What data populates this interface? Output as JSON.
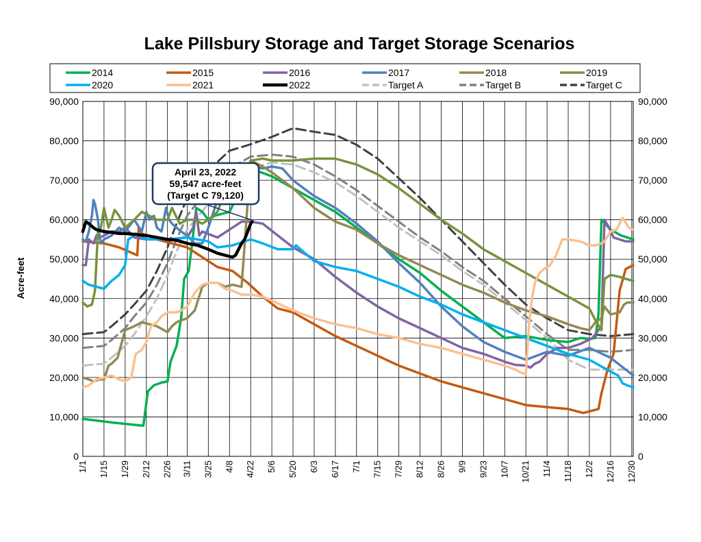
{
  "chart_data": {
    "type": "line",
    "title": "Lake Pillsbury Storage and Target Storage Scenarios",
    "ylabel": "Acre-feet",
    "ylim": [
      0,
      90000
    ],
    "ytick_values": [
      0,
      10000,
      20000,
      30000,
      40000,
      50000,
      60000,
      70000,
      80000,
      90000
    ],
    "ytick_labels": [
      "0",
      "10,000",
      "20,000",
      "30,000",
      "40,000",
      "50,000",
      "60,000",
      "70,000",
      "80,000",
      "90,000"
    ],
    "xlim": [
      1,
      365
    ],
    "x_unit": "day of year",
    "xtick_labels": [
      "1/1",
      "1/15",
      "1/29",
      "2/12",
      "2/26",
      "3/11",
      "3/25",
      "4/8",
      "4/22",
      "5/6",
      "5/20",
      "6/3",
      "6/17",
      "7/1",
      "7/15",
      "7/29",
      "8/12",
      "8/26",
      "9/9",
      "9/23",
      "10/7",
      "10/21",
      "11/4",
      "11/18",
      "12/2",
      "12/16",
      "12/30"
    ],
    "xtick_days": [
      1,
      15,
      29,
      43,
      57,
      70,
      84,
      98,
      112,
      126,
      140,
      154,
      168,
      182,
      196,
      210,
      224,
      238,
      252,
      266,
      280,
      294,
      308,
      322,
      336,
      350,
      364
    ],
    "grid": true,
    "legend_placement": "top",
    "series": [
      {
        "name": "2014",
        "color": "#00b050",
        "dash": "solid",
        "width": 3.5,
        "x": [
          1,
          20,
          40,
          41,
          44,
          48,
          53,
          57,
          59,
          63,
          66,
          68,
          71,
          73,
          76,
          80,
          84,
          88,
          98,
          112,
          126,
          140,
          154,
          168,
          182,
          196,
          210,
          224,
          238,
          252,
          266,
          280,
          294,
          308,
          322,
          330,
          336,
          340,
          342,
          344,
          350,
          357,
          365
        ],
        "y": [
          9500,
          8600,
          7800,
          7800,
          16500,
          18000,
          18700,
          19000,
          24000,
          28000,
          35000,
          45000,
          47000,
          53000,
          63000,
          62000,
          60000,
          61000,
          62000,
          73000,
          71000,
          68000,
          65000,
          62000,
          58000,
          54000,
          50000,
          46500,
          42000,
          38000,
          34000,
          30000,
          30500,
          29500,
          29000,
          30000,
          29800,
          30000,
          36000,
          60000,
          57500,
          56000,
          55000
        ]
      },
      {
        "name": "2015",
        "color": "#c55a11",
        "dash": "solid",
        "width": 3.5,
        "x": [
          1,
          15,
          25,
          37,
          38,
          40,
          50,
          60,
          70,
          80,
          90,
          100,
          110,
          120,
          130,
          140,
          154,
          168,
          182,
          196,
          210,
          224,
          238,
          252,
          266,
          280,
          294,
          308,
          322,
          332,
          337,
          342,
          344,
          348,
          352,
          356,
          360,
          365
        ],
        "y": [
          54500,
          54000,
          53000,
          51000,
          58000,
          56500,
          55000,
          54000,
          53000,
          50500,
          48000,
          47000,
          44000,
          40500,
          37500,
          36500,
          33500,
          30500,
          28000,
          25500,
          23000,
          21000,
          19000,
          17500,
          16000,
          14500,
          13000,
          12500,
          12000,
          11000,
          11500,
          12000,
          16000,
          22000,
          26000,
          42000,
          47500,
          48500
        ]
      },
      {
        "name": "2016",
        "color": "#8064a2",
        "dash": "solid",
        "width": 3.5,
        "x": [
          1,
          3,
          5,
          8,
          10,
          12,
          15,
          20,
          25,
          29,
          35,
          43,
          57,
          70,
          74,
          76,
          78,
          80,
          90,
          100,
          106,
          112,
          120,
          130,
          140,
          154,
          168,
          182,
          196,
          210,
          224,
          238,
          252,
          266,
          280,
          287,
          294,
          297,
          300,
          303,
          308,
          315,
          322,
          330,
          338,
          344,
          346,
          349,
          352,
          356,
          360,
          365
        ],
        "y": [
          48500,
          48500,
          55000,
          54000,
          56000,
          55500,
          56000,
          57000,
          57000,
          58000,
          55500,
          55000,
          55000,
          55500,
          58000,
          62000,
          56000,
          57000,
          55500,
          58000,
          59500,
          59500,
          59000,
          56000,
          53000,
          50000,
          45500,
          41500,
          38000,
          35000,
          32500,
          30000,
          27500,
          26000,
          24000,
          23200,
          23000,
          22500,
          23500,
          24000,
          26000,
          27500,
          27500,
          28500,
          30000,
          33000,
          60000,
          58000,
          55500,
          55000,
          54500,
          54500
        ]
      },
      {
        "name": "2017",
        "color": "#4f81bd",
        "dash": "solid",
        "width": 3.5,
        "x": [
          1,
          3,
          5,
          7,
          8,
          9,
          10,
          11,
          12,
          13,
          15,
          20,
          25,
          29,
          35,
          40,
          43,
          45,
          48,
          50,
          53,
          56,
          58,
          60,
          63,
          66,
          70,
          75,
          80,
          84,
          90,
          95,
          100,
          106,
          112,
          120,
          126,
          133,
          140,
          154,
          168,
          182,
          196,
          210,
          224,
          238,
          252,
          266,
          280,
          294,
          308,
          322,
          336,
          350,
          365
        ],
        "y": [
          55000,
          54500,
          57000,
          61000,
          65000,
          64000,
          62000,
          60000,
          56000,
          54000,
          55000,
          56000,
          58000,
          57000,
          60000,
          57000,
          62000,
          60000,
          61000,
          58000,
          57000,
          63000,
          60000,
          59000,
          58000,
          57000,
          56000,
          54000,
          54000,
          58000,
          65000,
          70000,
          72000,
          74000,
          73500,
          73000,
          73500,
          73000,
          70000,
          66000,
          63000,
          59000,
          54500,
          49000,
          44000,
          38000,
          33000,
          29000,
          26500,
          24500,
          26500,
          25500,
          27500,
          25000,
          20500
        ]
      },
      {
        "name": "2018",
        "color": "#938953",
        "dash": "solid",
        "width": 3.5,
        "x": [
          1,
          5,
          8,
          12,
          15,
          18,
          20,
          24,
          29,
          35,
          40,
          45,
          50,
          57,
          60,
          63,
          66,
          70,
          75,
          80,
          84,
          90,
          95,
          100,
          106,
          112,
          120,
          126,
          140,
          154,
          168,
          182,
          196,
          210,
          224,
          238,
          252,
          266,
          280,
          294,
          308,
          322,
          330,
          336,
          340,
          344,
          346,
          350,
          356,
          359,
          361,
          365
        ],
        "y": [
          20000,
          19500,
          19000,
          19500,
          19500,
          23000,
          23500,
          25000,
          32000,
          33000,
          34000,
          33500,
          33000,
          31500,
          33000,
          34000,
          34500,
          35000,
          37000,
          43000,
          44000,
          44000,
          43000,
          43500,
          43000,
          75000,
          73500,
          72000,
          68000,
          63000,
          59500,
          57500,
          54000,
          51000,
          48500,
          46000,
          43500,
          41500,
          39000,
          37000,
          35500,
          33500,
          32500,
          32000,
          34000,
          35000,
          38000,
          36000,
          36500,
          38500,
          39000,
          39000
        ]
      },
      {
        "name": "2019",
        "color": "#77933c",
        "dash": "solid",
        "width": 3.5,
        "x": [
          1,
          4,
          7,
          9,
          11,
          13,
          15,
          18,
          20,
          22,
          25,
          29,
          35,
          40,
          45,
          50,
          57,
          60,
          65,
          70,
          75,
          80,
          84,
          90,
          96,
          100,
          106,
          110,
          112,
          120,
          126,
          140,
          154,
          168,
          182,
          196,
          210,
          224,
          238,
          252,
          266,
          280,
          294,
          308,
          322,
          336,
          340,
          344,
          346,
          350,
          356,
          360,
          365
        ],
        "y": [
          39000,
          38000,
          38500,
          42000,
          57000,
          58000,
          63000,
          58000,
          60000,
          62500,
          61000,
          58000,
          60000,
          62000,
          61000,
          60000,
          60000,
          63000,
          59000,
          60000,
          60000,
          59000,
          60000,
          62000,
          68000,
          69000,
          72000,
          73000,
          75000,
          75500,
          75000,
          75000,
          75500,
          75500,
          74000,
          71500,
          68000,
          64000,
          60000,
          56500,
          52500,
          49500,
          46500,
          43500,
          40500,
          37500,
          34500,
          32000,
          45000,
          46000,
          45500,
          45000,
          44500
        ]
      },
      {
        "name": "2020",
        "color": "#00b0f0",
        "dash": "solid",
        "width": 3.5,
        "x": [
          1,
          5,
          10,
          15,
          20,
          25,
          29,
          31,
          33,
          36,
          40,
          45,
          57,
          70,
          84,
          90,
          100,
          112,
          120,
          130,
          140,
          142,
          154,
          168,
          182,
          196,
          210,
          224,
          238,
          252,
          266,
          280,
          294,
          308,
          322,
          336,
          350,
          355,
          358,
          361,
          365
        ],
        "y": [
          44500,
          43500,
          43000,
          42500,
          44500,
          46000,
          48500,
          55000,
          55500,
          56500,
          55500,
          55000,
          55000,
          55500,
          54500,
          53000,
          53500,
          55000,
          54000,
          52500,
          52500,
          53500,
          49500,
          48000,
          47000,
          45000,
          43000,
          40500,
          38500,
          36000,
          34000,
          32000,
          30000,
          28000,
          26000,
          24500,
          21500,
          20500,
          18500,
          18000,
          17500
        ]
      },
      {
        "name": "2021",
        "color": "#fac090",
        "dash": "solid",
        "width": 3.5,
        "x": [
          1,
          5,
          10,
          15,
          20,
          25,
          29,
          33,
          36,
          40,
          43,
          46,
          50,
          53,
          57,
          63,
          66,
          70,
          75,
          80,
          84,
          90,
          95,
          100,
          106,
          112,
          120,
          126,
          140,
          154,
          168,
          182,
          196,
          210,
          224,
          238,
          252,
          266,
          280,
          287,
          292,
          294,
          296,
          298,
          300,
          303,
          306,
          310,
          314,
          318,
          322,
          330,
          336,
          340,
          344,
          346,
          350,
          354,
          358,
          362,
          365
        ],
        "y": [
          17500,
          18000,
          19500,
          20000,
          20500,
          19500,
          19000,
          20000,
          26000,
          27000,
          29000,
          33000,
          34000,
          35500,
          36500,
          36500,
          37000,
          38000,
          41500,
          43500,
          44000,
          44000,
          42500,
          42000,
          41000,
          41000,
          40500,
          39500,
          37000,
          35000,
          33500,
          32500,
          31000,
          30000,
          28500,
          27500,
          26000,
          24500,
          23000,
          22000,
          21000,
          21000,
          33000,
          40000,
          44000,
          46500,
          47500,
          48500,
          51000,
          55000,
          55000,
          54500,
          53500,
          53500,
          54000,
          54500,
          57000,
          57500,
          60500,
          58000,
          57500
        ]
      },
      {
        "name": "2022",
        "color": "#000000",
        "dash": "solid",
        "width": 4.5,
        "x": [
          1,
          3,
          5,
          8,
          10,
          15,
          20,
          25,
          29,
          35,
          43,
          50,
          57,
          63,
          70,
          77,
          84,
          90,
          95,
          100,
          102,
          104,
          106,
          108,
          110,
          112,
          113
        ],
        "y": [
          57000,
          59500,
          59000,
          58000,
          57500,
          57000,
          56800,
          56500,
          56500,
          56300,
          56000,
          55500,
          55000,
          54800,
          54000,
          53500,
          52500,
          51500,
          51000,
          50500,
          51000,
          52500,
          54000,
          55000,
          57000,
          59000,
          59547
        ]
      },
      {
        "name": "Target A",
        "color": "#c0c0c0",
        "dash": "dashed",
        "width": 3,
        "x": [
          1,
          15,
          20,
          29,
          35,
          43,
          50,
          57,
          63,
          70,
          84,
          98,
          112,
          126,
          140,
          154,
          168,
          182,
          196,
          210,
          224,
          238,
          252,
          266,
          280,
          294,
          308,
          322,
          336,
          350,
          365
        ],
        "y": [
          23000,
          23500,
          25000,
          28000,
          31000,
          35500,
          40000,
          46000,
          52000,
          57500,
          64000,
          69000,
          73000,
          74500,
          74000,
          72000,
          69500,
          66000,
          62000,
          58000,
          54500,
          51000,
          47000,
          43500,
          39000,
          34500,
          30000,
          24500,
          22000,
          22000,
          22000
        ]
      },
      {
        "name": "Target B",
        "color": "#808080",
        "dash": "dashed",
        "width": 3,
        "x": [
          1,
          15,
          20,
          29,
          35,
          43,
          50,
          57,
          63,
          70,
          84,
          98,
          112,
          126,
          140,
          154,
          168,
          182,
          196,
          210,
          224,
          238,
          252,
          266,
          280,
          294,
          308,
          322,
          336,
          350,
          365
        ],
        "y": [
          27500,
          28000,
          29500,
          32500,
          35500,
          39000,
          43500,
          49000,
          55000,
          61000,
          68000,
          73000,
          76000,
          76500,
          76000,
          74000,
          71000,
          67500,
          63500,
          59500,
          55500,
          52000,
          48000,
          44500,
          40000,
          35500,
          31000,
          27000,
          27000,
          26500,
          27000
        ]
      },
      {
        "name": "Target C",
        "color": "#404040",
        "dash": "dashed",
        "width": 3,
        "x": [
          1,
          15,
          20,
          29,
          35,
          43,
          50,
          57,
          63,
          70,
          84,
          98,
          112,
          126,
          140,
          154,
          168,
          182,
          196,
          210,
          224,
          238,
          252,
          266,
          280,
          294,
          308,
          322,
          336,
          350,
          365
        ],
        "y": [
          31000,
          31500,
          33000,
          36000,
          38500,
          42000,
          47000,
          53000,
          59000,
          65500,
          72500,
          77500,
          79120,
          81000,
          83200,
          82300,
          81500,
          79000,
          75500,
          70500,
          65500,
          60000,
          54500,
          49000,
          43500,
          38500,
          35000,
          32000,
          31000,
          30500,
          31000
        ]
      }
    ],
    "annotation": {
      "lines": [
        "April 23, 2022",
        "59,547 acre-feet",
        "(Target C 79,120)"
      ]
    }
  }
}
